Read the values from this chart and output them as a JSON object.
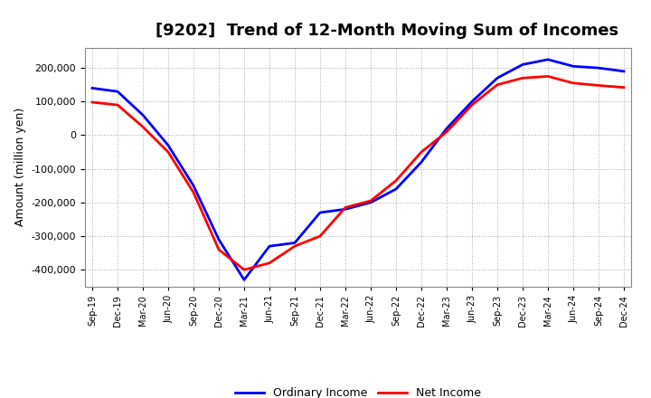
{
  "title": "[9202]  Trend of 12-Month Moving Sum of Incomes",
  "ylabel": "Amount (million yen)",
  "ylim": [
    -450000,
    260000
  ],
  "yticks": [
    -400000,
    -300000,
    -200000,
    -100000,
    0,
    100000,
    200000
  ],
  "x_labels": [
    "Sep-19",
    "Dec-19",
    "Mar-20",
    "Jun-20",
    "Sep-20",
    "Dec-20",
    "Mar-21",
    "Jun-21",
    "Sep-21",
    "Dec-21",
    "Mar-22",
    "Jun-22",
    "Sep-22",
    "Dec-22",
    "Mar-23",
    "Jun-23",
    "Sep-23",
    "Dec-23",
    "Mar-24",
    "Jun-24",
    "Sep-24",
    "Dec-24"
  ],
  "ordinary_income": [
    140000,
    130000,
    60000,
    -30000,
    -150000,
    -310000,
    -430000,
    -330000,
    -320000,
    -230000,
    -220000,
    -200000,
    -160000,
    -80000,
    20000,
    100000,
    170000,
    210000,
    225000,
    205000,
    200000,
    190000
  ],
  "net_income": [
    98000,
    90000,
    25000,
    -50000,
    -170000,
    -340000,
    -400000,
    -380000,
    -330000,
    -300000,
    -215000,
    -195000,
    -135000,
    -50000,
    10000,
    90000,
    150000,
    170000,
    175000,
    155000,
    148000,
    142000
  ],
  "ordinary_color": "#0000ff",
  "net_color": "#ff0000",
  "grid_color": "#aaaaaa",
  "background_color": "#ffffff",
  "legend_labels": [
    "Ordinary Income",
    "Net Income"
  ],
  "figsize": [
    7.2,
    4.4
  ],
  "dpi": 100
}
